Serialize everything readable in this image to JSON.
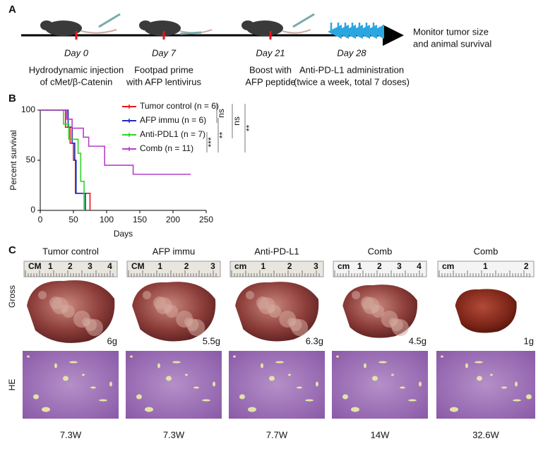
{
  "panel_a": {
    "label": "A",
    "events": [
      {
        "day": "Day 0",
        "lines": [
          "Hydrodynamic injection",
          "of cMet/β-Catenin"
        ]
      },
      {
        "day": "Day 7",
        "lines": [
          "Footpad prime",
          "with AFP lentivirus"
        ]
      },
      {
        "day": "Day 21",
        "lines": [
          "Boost with",
          "AFP peptide"
        ]
      },
      {
        "day": "Day 28",
        "lines": [
          "Anti-PD-L1 administration",
          "(twice a week, total 7 doses)"
        ]
      }
    ],
    "end_text": [
      "Monitor tumor size",
      "and animal survival"
    ]
  },
  "chart_data": {
    "type": "step",
    "label": "B",
    "xlabel": "Days",
    "ylabel": "Percent survival",
    "xlim": [
      0,
      250
    ],
    "ylim": [
      0,
      100
    ],
    "xticks": [
      0,
      50,
      100,
      150,
      200,
      250
    ],
    "yticks": [
      0,
      50,
      100
    ],
    "series": [
      {
        "name": "Tumor control (n = 6)",
        "color": "#e8141b",
        "x": [
          0,
          38,
          45,
          50,
          53,
          75
        ],
        "values": [
          100,
          83,
          67,
          50,
          17,
          0
        ]
      },
      {
        "name": "AFP immu (n = 6)",
        "color": "#1f2fb5",
        "x": [
          0,
          42,
          48,
          52,
          54,
          68
        ],
        "values": [
          100,
          83,
          67,
          50,
          17,
          0
        ]
      },
      {
        "name": "Anti-PDL1 (n = 7)",
        "color": "#2fd42a",
        "x": [
          0,
          35,
          43,
          57,
          61,
          66
        ],
        "values": [
          100,
          86,
          71,
          57,
          29,
          0
        ]
      },
      {
        "name": "Comb (n = 11)",
        "color": "#b53fc9",
        "x": [
          0,
          40,
          48,
          65,
          73,
          97,
          140,
          227
        ],
        "values": [
          100,
          91,
          82,
          73,
          64,
          45,
          36,
          36
        ]
      }
    ],
    "comparisons": [
      "ns",
      "ns",
      "**",
      "***",
      "**"
    ]
  },
  "panel_c": {
    "label": "C",
    "row_labels": [
      "Gross",
      "HE"
    ],
    "columns": [
      {
        "title": "Tumor control",
        "weight": "6g",
        "time": "7.3W",
        "ruler": [
          "CM",
          "1",
          "2",
          "3",
          "4"
        ]
      },
      {
        "title": "AFP immu",
        "weight": "5.5g",
        "time": "7.3W",
        "ruler": [
          "CM",
          "1",
          "2",
          "3"
        ]
      },
      {
        "title": "Anti-PD-L1",
        "weight": "6.3g",
        "time": "7.7W",
        "ruler": [
          "cm",
          "1",
          "2",
          "3"
        ]
      },
      {
        "title": "Comb",
        "weight": "4.5g",
        "time": "14W",
        "ruler": [
          "cm",
          "1",
          "2",
          "3",
          "4"
        ]
      },
      {
        "title": "Comb",
        "weight": "1g",
        "time": "32.6W",
        "ruler": [
          "cm",
          "1",
          "2"
        ]
      }
    ]
  }
}
